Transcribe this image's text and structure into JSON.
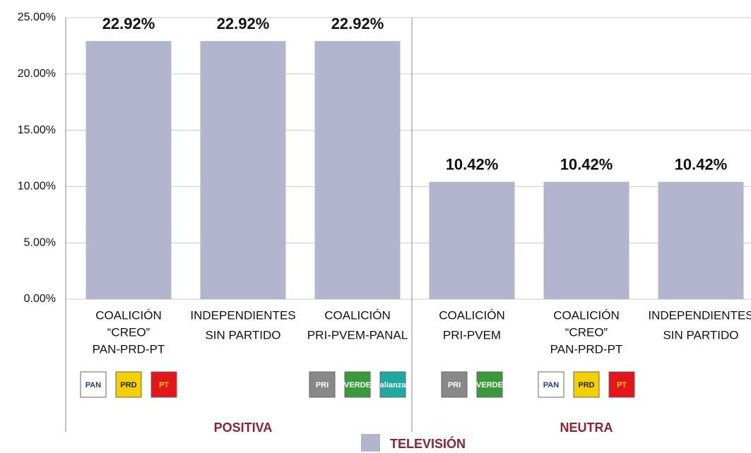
{
  "chart_data": {
    "type": "bar",
    "groups": [
      {
        "name": "POSITIVA",
        "categories": [
          [
            "COALICIÓN",
            "“CREO”",
            "PAN-PRD-PT"
          ],
          [
            "INDEPENDIENTES",
            "SIN PARTIDO"
          ],
          [
            "COALICIÓN",
            "PRI-PVEM-PANAL"
          ]
        ],
        "logos": [
          [
            "PAN",
            "PRD",
            "PT"
          ],
          [],
          [
            "PRI",
            "VERDE",
            "alianza"
          ]
        ]
      },
      {
        "name": "NEUTRA",
        "categories": [
          [
            "COALICIÓN",
            "PRI-PVEM"
          ],
          [
            "COALICIÓN",
            "“CREO”",
            "PAN-PRD-PT"
          ],
          [
            "INDEPENDIENTES",
            "SIN PARTIDO"
          ]
        ],
        "logos": [
          [
            "PRI",
            "VERDE"
          ],
          [
            "PAN",
            "PRD",
            "PT"
          ],
          []
        ]
      }
    ],
    "series": [
      {
        "name": "TELEVISIÓN",
        "color": "#b3b5cf",
        "values": [
          22.92,
          22.92,
          22.92,
          10.42,
          10.42,
          10.42
        ],
        "value_labels": [
          "22.92%",
          "22.92%",
          "22.92%",
          "10.42%",
          "10.42%",
          "10.42%"
        ]
      }
    ],
    "ylim": [
      0,
      25
    ],
    "yticks": [
      {
        "value": 0,
        "label": "0.00%"
      },
      {
        "value": 5,
        "label": "5.00%"
      },
      {
        "value": 10,
        "label": "10.00%"
      },
      {
        "value": 15,
        "label": "15.00%"
      },
      {
        "value": 20,
        "label": "20.00%"
      },
      {
        "value": 25,
        "label": "25.00%"
      }
    ],
    "grid": true
  }
}
